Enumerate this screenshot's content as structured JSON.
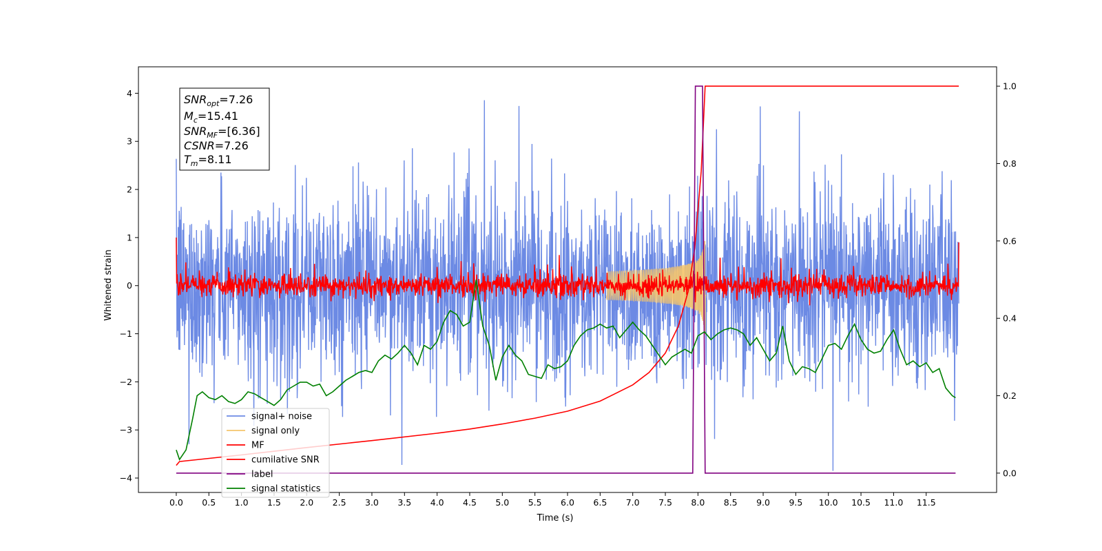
{
  "chart_data": {
    "type": "line",
    "title": "",
    "xlabel": "Time (s)",
    "ylabel": "Whitened strain",
    "xlim": [
      -0.58,
      12.58
    ],
    "ylim": [
      -4.3,
      4.55
    ],
    "y2lim": [
      -0.05,
      1.05
    ],
    "x_ticks": [
      "0.0",
      "0.5",
      "1.0",
      "1.5",
      "2.0",
      "2.5",
      "3.0",
      "3.5",
      "4.0",
      "4.5",
      "5.0",
      "5.5",
      "6.0",
      "6.5",
      "7.0",
      "7.5",
      "8.0",
      "8.5",
      "9.0",
      "9.5",
      "10.0",
      "10.5",
      "11.0",
      "11.5"
    ],
    "y_ticks": [
      "4",
      "3",
      "2",
      "1",
      "0",
      "−1",
      "−2",
      "−3",
      "−4"
    ],
    "y2_ticks": [
      "1.0",
      "0.8",
      "0.6",
      "0.4",
      "0.2",
      "0.0"
    ],
    "annotation": {
      "snr_opt": {
        "base": "SNR",
        "sub": "opt",
        "value": "=7.26"
      },
      "mc": {
        "base": "M",
        "sub": "c",
        "value": "=15.41"
      },
      "snr_mf": {
        "base": "SNR",
        "sub": "MF",
        "value": "=[6.36]"
      },
      "csnr": {
        "base": "CSNR",
        "sub": "",
        "value": "=7.26"
      },
      "tm": {
        "base": "T",
        "sub": "m",
        "value": "=8.11"
      }
    },
    "series": [
      {
        "name": "signal+ noise",
        "color": "#6c8ae4",
        "axis": "left",
        "kind": "noise",
        "amplitude_sigma": 0.95,
        "x_range": [
          0,
          12
        ]
      },
      {
        "name": "signal only",
        "color": "#f5c46b",
        "axis": "left",
        "kind": "chirp",
        "merger_time": 8.11,
        "peak_amplitude": 1.4
      },
      {
        "name": "MF",
        "color": "#ff0000",
        "axis": "left",
        "kind": "noise",
        "amplitude_sigma": 0.12,
        "x_range": [
          0,
          12
        ]
      },
      {
        "name": "cumilative SNR",
        "color": "#ff0000",
        "axis": "right",
        "x": [
          0,
          0.05,
          1,
          2,
          3,
          4,
          4.5,
          5,
          5.5,
          6,
          6.5,
          7,
          7.25,
          7.5,
          7.7,
          7.85,
          7.95,
          8.05,
          8.11,
          9,
          10,
          11,
          12
        ],
        "values": [
          0.02,
          0.03,
          0.047,
          0.066,
          0.084,
          0.103,
          0.114,
          0.127,
          0.142,
          0.16,
          0.186,
          0.228,
          0.26,
          0.31,
          0.38,
          0.47,
          0.58,
          0.78,
          1.0,
          1.0,
          1.0,
          1.0,
          1.0
        ]
      },
      {
        "name": "label",
        "color": "#800080",
        "axis": "right",
        "x": [
          0,
          7.92,
          7.96,
          8.07,
          8.11,
          11.95
        ],
        "values": [
          0,
          0,
          1,
          1,
          0,
          0
        ]
      },
      {
        "name": "signal statistics",
        "color": "#008000",
        "axis": "right",
        "x": [
          0,
          0.05,
          0.15,
          0.25,
          0.32,
          0.4,
          0.5,
          0.6,
          0.7,
          0.8,
          0.9,
          1.0,
          1.1,
          1.2,
          1.3,
          1.4,
          1.5,
          1.6,
          1.7,
          1.8,
          1.9,
          2.0,
          2.1,
          2.2,
          2.3,
          2.4,
          2.5,
          2.6,
          2.7,
          2.8,
          2.9,
          3.0,
          3.1,
          3.2,
          3.3,
          3.4,
          3.5,
          3.6,
          3.7,
          3.8,
          3.9,
          4.0,
          4.1,
          4.2,
          4.3,
          4.4,
          4.5,
          4.6,
          4.7,
          4.8,
          4.9,
          5.0,
          5.1,
          5.2,
          5.3,
          5.4,
          5.5,
          5.6,
          5.7,
          5.8,
          5.9,
          6.0,
          6.1,
          6.2,
          6.3,
          6.4,
          6.5,
          6.6,
          6.7,
          6.8,
          6.9,
          7.0,
          7.1,
          7.2,
          7.3,
          7.4,
          7.5,
          7.6,
          7.7,
          7.8,
          7.9,
          8.0,
          8.1,
          8.2,
          8.3,
          8.4,
          8.5,
          8.6,
          8.7,
          8.8,
          8.9,
          9.0,
          9.1,
          9.2,
          9.3,
          9.4,
          9.5,
          9.6,
          9.7,
          9.8,
          9.9,
          10.0,
          10.1,
          10.2,
          10.3,
          10.4,
          10.5,
          10.6,
          10.7,
          10.8,
          10.9,
          11.0,
          11.1,
          11.2,
          11.3,
          11.4,
          11.5,
          11.6,
          11.7,
          11.8,
          11.9,
          11.95
        ],
        "values": [
          0.06,
          0.035,
          0.06,
          0.14,
          0.2,
          0.21,
          0.195,
          0.19,
          0.2,
          0.185,
          0.18,
          0.19,
          0.21,
          0.205,
          0.195,
          0.185,
          0.175,
          0.19,
          0.215,
          0.225,
          0.235,
          0.235,
          0.225,
          0.23,
          0.2,
          0.21,
          0.225,
          0.24,
          0.25,
          0.26,
          0.265,
          0.26,
          0.29,
          0.305,
          0.295,
          0.31,
          0.33,
          0.31,
          0.28,
          0.33,
          0.32,
          0.34,
          0.39,
          0.42,
          0.41,
          0.38,
          0.39,
          0.5,
          0.38,
          0.33,
          0.24,
          0.3,
          0.33,
          0.305,
          0.29,
          0.255,
          0.25,
          0.245,
          0.28,
          0.27,
          0.275,
          0.29,
          0.33,
          0.355,
          0.37,
          0.375,
          0.385,
          0.375,
          0.38,
          0.35,
          0.37,
          0.39,
          0.37,
          0.355,
          0.33,
          0.305,
          0.28,
          0.3,
          0.31,
          0.32,
          0.31,
          0.355,
          0.365,
          0.345,
          0.36,
          0.37,
          0.375,
          0.37,
          0.36,
          0.33,
          0.35,
          0.32,
          0.29,
          0.31,
          0.38,
          0.29,
          0.255,
          0.275,
          0.27,
          0.26,
          0.295,
          0.33,
          0.335,
          0.32,
          0.355,
          0.385,
          0.345,
          0.32,
          0.31,
          0.315,
          0.345,
          0.37,
          0.32,
          0.28,
          0.29,
          0.275,
          0.285,
          0.26,
          0.27,
          0.22,
          0.2,
          0.195
        ]
      }
    ],
    "legend": {
      "placement": "lower-left",
      "entries": [
        "signal+ noise",
        "signal only",
        "MF",
        "cumilative SNR",
        "label",
        "signal statistics"
      ]
    },
    "grid": false
  }
}
